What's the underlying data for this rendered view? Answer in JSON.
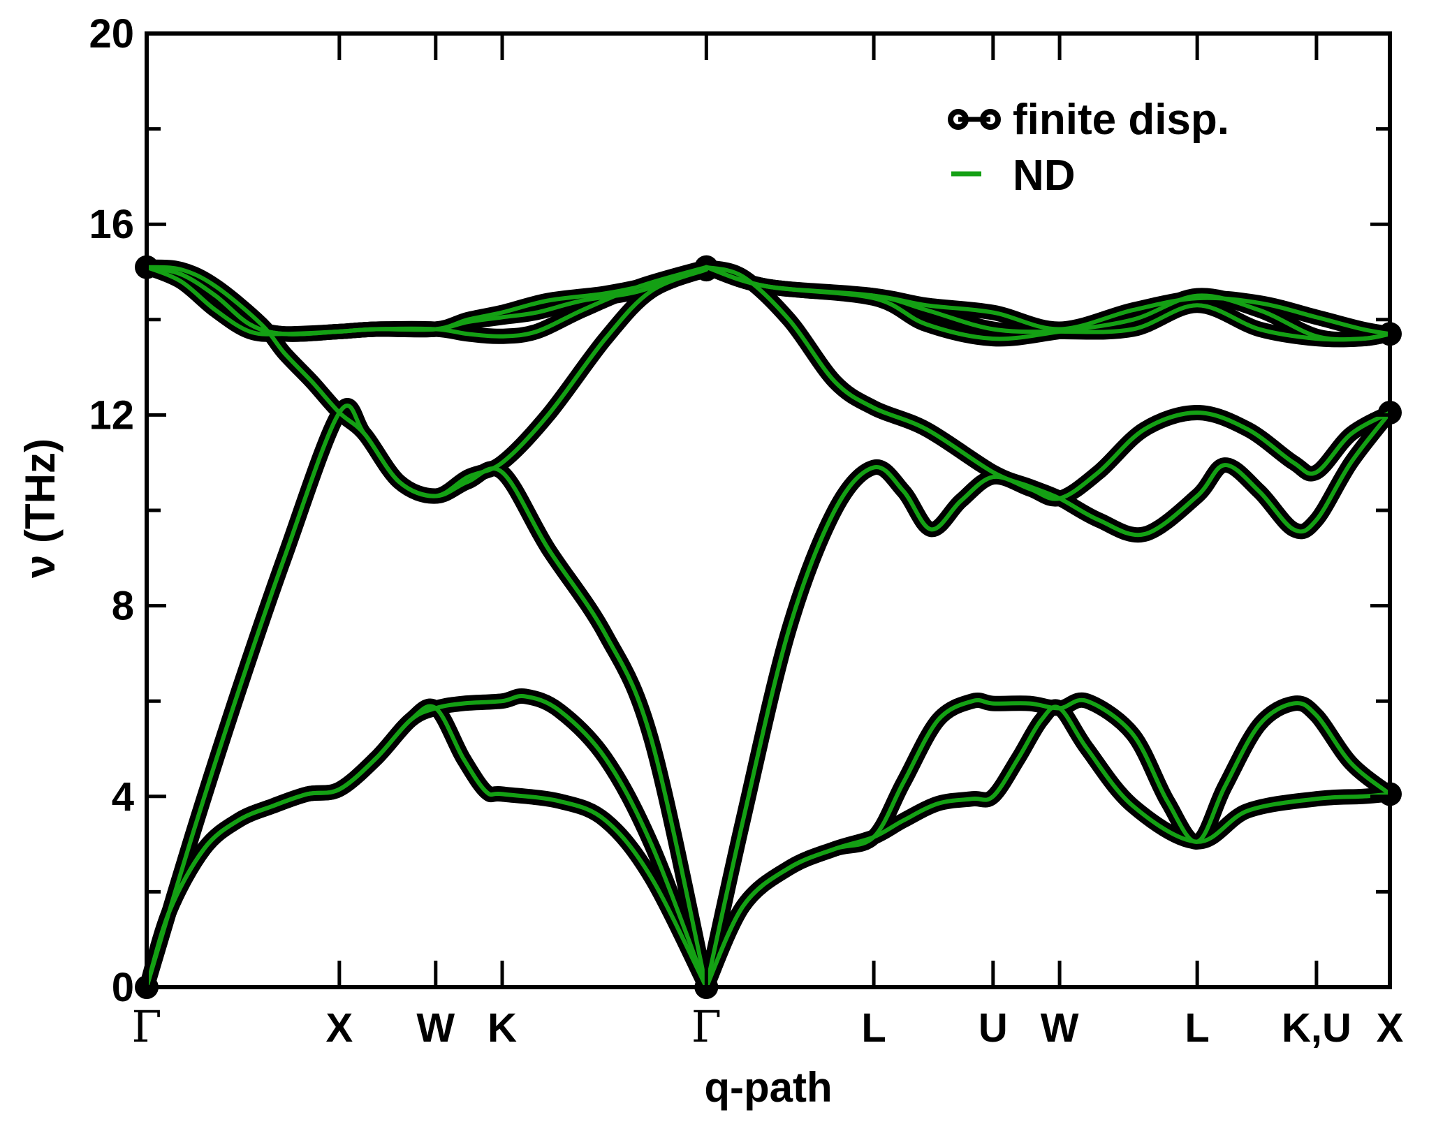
{
  "chart_data": {
    "type": "line",
    "xlabel": "q-path",
    "ylabel": "ν (THz)",
    "ylim": [
      0,
      20
    ],
    "xlim": [
      0,
      5.42
    ],
    "y_ticks": [
      0,
      4,
      8,
      12,
      16,
      20
    ],
    "y_minor_step": 2,
    "grid": false,
    "legend_position": "top-right",
    "high_symmetry_points": [
      {
        "label": "Γ",
        "x": 0.0
      },
      {
        "label": "X",
        "x": 0.84
      },
      {
        "label": "W",
        "x": 1.26
      },
      {
        "label": "K",
        "x": 1.55
      },
      {
        "label": "Γ",
        "x": 2.44
      },
      {
        "label": "L",
        "x": 3.17
      },
      {
        "label": "U",
        "x": 3.69
      },
      {
        "label": "W",
        "x": 3.98
      },
      {
        "label": "L",
        "x": 4.58
      },
      {
        "label": "K,U",
        "x": 5.1
      },
      {
        "label": "X",
        "x": 5.42
      }
    ],
    "series": [
      {
        "name": "finite disp.",
        "style": "symbols",
        "color": "#000000"
      },
      {
        "name": "ND",
        "style": "line",
        "color": "#14a014"
      }
    ],
    "bands": [
      [
        [
          0,
          0
        ],
        [
          0.1,
          1.6
        ],
        [
          0.25,
          2.9
        ],
        [
          0.4,
          3.5
        ],
        [
          0.55,
          3.8
        ],
        [
          0.7,
          4.05
        ],
        [
          0.84,
          4.15
        ],
        [
          1.0,
          4.8
        ],
        [
          1.15,
          5.6
        ],
        [
          1.26,
          5.85
        ],
        [
          1.38,
          4.8
        ],
        [
          1.48,
          4.1
        ],
        [
          1.55,
          4.05
        ],
        [
          1.8,
          3.9
        ],
        [
          2.0,
          3.5
        ],
        [
          2.2,
          2.3
        ],
        [
          2.44,
          0
        ]
      ],
      [
        [
          0,
          0
        ],
        [
          0.1,
          1.6
        ],
        [
          0.25,
          2.9
        ],
        [
          0.4,
          3.5
        ],
        [
          0.55,
          3.8
        ],
        [
          0.7,
          4.05
        ],
        [
          0.84,
          4.15
        ],
        [
          1.0,
          4.8
        ],
        [
          1.15,
          5.6
        ],
        [
          1.26,
          5.85
        ],
        [
          1.38,
          5.95
        ],
        [
          1.55,
          6.0
        ],
        [
          1.65,
          6.1
        ],
        [
          1.8,
          5.8
        ],
        [
          2.0,
          4.8
        ],
        [
          2.2,
          3.0
        ],
        [
          2.44,
          0
        ]
      ],
      [
        [
          0,
          0
        ],
        [
          0.2,
          3.2
        ],
        [
          0.4,
          6.2
        ],
        [
          0.6,
          9.0
        ],
        [
          0.84,
          12.05
        ],
        [
          0.95,
          11.6
        ],
        [
          1.1,
          10.6
        ],
        [
          1.26,
          10.3
        ],
        [
          1.4,
          10.6
        ],
        [
          1.55,
          10.8
        ],
        [
          1.75,
          9.2
        ],
        [
          2.0,
          7.4
        ],
        [
          2.2,
          5.2
        ],
        [
          2.44,
          0
        ]
      ],
      [
        [
          0,
          15.1
        ],
        [
          0.15,
          15.05
        ],
        [
          0.3,
          14.7
        ],
        [
          0.5,
          13.9
        ],
        [
          0.6,
          13.3
        ],
        [
          0.72,
          12.7
        ],
        [
          0.84,
          12.05
        ],
        [
          0.95,
          11.6
        ],
        [
          1.1,
          10.6
        ],
        [
          1.26,
          10.3
        ],
        [
          1.4,
          10.7
        ],
        [
          1.55,
          11.0
        ],
        [
          1.75,
          12.0
        ],
        [
          2.0,
          13.6
        ],
        [
          2.2,
          14.6
        ],
        [
          2.44,
          15.05
        ]
      ],
      [
        [
          0,
          15.1
        ],
        [
          0.15,
          14.8
        ],
        [
          0.3,
          14.2
        ],
        [
          0.45,
          13.75
        ],
        [
          0.6,
          13.7
        ],
        [
          0.84,
          13.75
        ],
        [
          1.0,
          13.8
        ],
        [
          1.26,
          13.8
        ],
        [
          1.4,
          13.7
        ],
        [
          1.55,
          13.65
        ],
        [
          1.7,
          13.75
        ],
        [
          1.9,
          14.2
        ],
        [
          2.15,
          14.7
        ],
        [
          2.44,
          15.1
        ]
      ],
      [
        [
          0,
          15.1
        ],
        [
          0.15,
          14.95
        ],
        [
          0.3,
          14.5
        ],
        [
          0.45,
          13.9
        ],
        [
          0.6,
          13.7
        ],
        [
          0.84,
          13.75
        ],
        [
          1.0,
          13.8
        ],
        [
          1.26,
          13.8
        ],
        [
          1.4,
          13.95
        ],
        [
          1.55,
          14.05
        ],
        [
          1.7,
          14.15
        ],
        [
          1.9,
          14.4
        ],
        [
          2.15,
          14.6
        ],
        [
          2.44,
          15.1
        ]
      ],
      [
        [
          0,
          15.1
        ],
        [
          0.15,
          14.95
        ],
        [
          0.3,
          14.5
        ],
        [
          0.45,
          13.9
        ],
        [
          0.6,
          13.7
        ],
        [
          0.84,
          13.75
        ],
        [
          1.0,
          13.8
        ],
        [
          1.26,
          13.8
        ],
        [
          1.4,
          14.0
        ],
        [
          1.55,
          14.15
        ],
        [
          1.75,
          14.4
        ],
        [
          2.0,
          14.55
        ],
        [
          2.2,
          14.75
        ],
        [
          2.44,
          15.1
        ]
      ],
      [
        [
          2.44,
          0
        ],
        [
          2.6,
          3.5
        ],
        [
          2.8,
          7.5
        ],
        [
          3.0,
          10.0
        ],
        [
          3.17,
          10.9
        ],
        [
          3.3,
          10.4
        ],
        [
          3.42,
          9.6
        ],
        [
          3.55,
          10.2
        ],
        [
          3.69,
          10.7
        ],
        [
          3.85,
          10.45
        ],
        [
          3.98,
          10.25
        ],
        [
          4.15,
          10.8
        ],
        [
          4.35,
          11.7
        ],
        [
          4.58,
          12.05
        ],
        [
          4.8,
          11.7
        ],
        [
          5.0,
          11.0
        ],
        [
          5.1,
          10.8
        ],
        [
          5.25,
          11.6
        ],
        [
          5.42,
          12.05
        ]
      ],
      [
        [
          2.44,
          0
        ],
        [
          2.6,
          1.7
        ],
        [
          2.8,
          2.5
        ],
        [
          3.0,
          2.9
        ],
        [
          3.17,
          3.15
        ],
        [
          3.3,
          3.5
        ],
        [
          3.45,
          3.85
        ],
        [
          3.6,
          3.95
        ],
        [
          3.69,
          4.0
        ],
        [
          3.8,
          4.8
        ],
        [
          3.9,
          5.6
        ],
        [
          3.98,
          5.85
        ],
        [
          4.1,
          5.0
        ],
        [
          4.3,
          3.8
        ],
        [
          4.58,
          3.05
        ],
        [
          4.8,
          3.7
        ],
        [
          5.1,
          3.95
        ],
        [
          5.3,
          4.0
        ],
        [
          5.42,
          4.05
        ]
      ],
      [
        [
          2.44,
          0
        ],
        [
          2.6,
          1.7
        ],
        [
          2.8,
          2.5
        ],
        [
          3.0,
          2.9
        ],
        [
          3.17,
          3.15
        ],
        [
          3.3,
          4.3
        ],
        [
          3.45,
          5.6
        ],
        [
          3.6,
          6.0
        ],
        [
          3.69,
          5.95
        ],
        [
          3.85,
          5.95
        ],
        [
          3.98,
          5.85
        ],
        [
          4.1,
          6.0
        ],
        [
          4.3,
          5.3
        ],
        [
          4.45,
          3.9
        ],
        [
          4.58,
          3.05
        ],
        [
          4.7,
          4.2
        ],
        [
          4.85,
          5.5
        ],
        [
          5.0,
          5.95
        ],
        [
          5.1,
          5.7
        ],
        [
          5.25,
          4.7
        ],
        [
          5.42,
          4.05
        ]
      ],
      [
        [
          2.44,
          15.1
        ],
        [
          2.6,
          14.9
        ],
        [
          2.8,
          14.0
        ],
        [
          3.0,
          12.7
        ],
        [
          3.17,
          12.15
        ],
        [
          3.4,
          11.7
        ],
        [
          3.69,
          10.8
        ],
        [
          3.85,
          10.5
        ],
        [
          3.98,
          10.25
        ],
        [
          4.15,
          9.8
        ],
        [
          4.35,
          9.5
        ],
        [
          4.58,
          10.3
        ],
        [
          4.7,
          10.95
        ],
        [
          4.85,
          10.4
        ],
        [
          5.0,
          9.6
        ],
        [
          5.1,
          9.8
        ],
        [
          5.25,
          11.0
        ],
        [
          5.42,
          12.05
        ]
      ],
      [
        [
          2.44,
          15.1
        ],
        [
          2.7,
          14.7
        ],
        [
          3.17,
          14.5
        ],
        [
          3.4,
          14.3
        ],
        [
          3.69,
          14.15
        ],
        [
          3.98,
          13.8
        ],
        [
          4.3,
          14.2
        ],
        [
          4.58,
          14.45
        ],
        [
          4.85,
          14.35
        ],
        [
          5.1,
          14.05
        ],
        [
          5.3,
          13.8
        ],
        [
          5.42,
          13.7
        ]
      ],
      [
        [
          2.44,
          15.1
        ],
        [
          2.7,
          14.7
        ],
        [
          3.17,
          14.45
        ],
        [
          3.4,
          13.9
        ],
        [
          3.69,
          13.6
        ],
        [
          3.98,
          13.75
        ],
        [
          4.3,
          14.0
        ],
        [
          4.58,
          14.5
        ],
        [
          4.85,
          14.2
        ],
        [
          5.1,
          13.65
        ],
        [
          5.3,
          13.6
        ],
        [
          5.42,
          13.7
        ]
      ],
      [
        [
          2.44,
          15.1
        ],
        [
          2.7,
          14.7
        ],
        [
          3.17,
          14.5
        ],
        [
          3.4,
          14.2
        ],
        [
          3.69,
          13.8
        ],
        [
          3.98,
          13.75
        ],
        [
          4.3,
          13.8
        ],
        [
          4.58,
          14.3
        ],
        [
          4.85,
          13.8
        ],
        [
          5.1,
          13.6
        ],
        [
          5.3,
          13.6
        ],
        [
          5.42,
          13.7
        ]
      ]
    ]
  }
}
